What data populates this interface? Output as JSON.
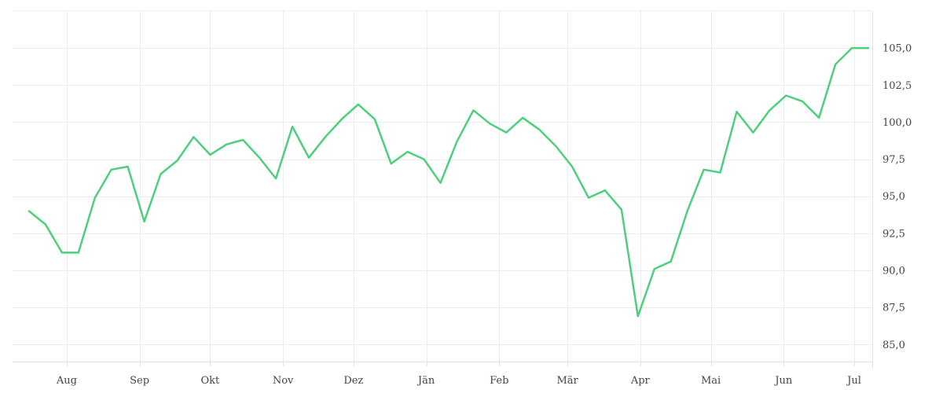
{
  "chart_data": {
    "type": "line",
    "title": "",
    "xlabel": "",
    "ylabel": "",
    "x_ticks": [
      "Aug",
      "Sep",
      "Okt",
      "Nov",
      "Dez",
      "Jän",
      "Feb",
      "Mär",
      "Apr",
      "Mai",
      "Jun",
      "Jul"
    ],
    "y_ticks": [
      "85,0",
      "87,5",
      "90,0",
      "92,5",
      "95,0",
      "97,5",
      "100,0",
      "102,5",
      "105,0"
    ],
    "y_tick_values": [
      85.0,
      87.5,
      90.0,
      92.5,
      95.0,
      97.5,
      100.0,
      102.5,
      105.0
    ],
    "ylim": [
      83.9,
      107.5
    ],
    "grid": true,
    "y_axis_side": "right",
    "series": [
      {
        "color": "#4cd07d",
        "points": [
          [
            "2023-07-16",
            94.0
          ],
          [
            "2023-07-23",
            93.1
          ],
          [
            "2023-07-30",
            91.2
          ],
          [
            "2023-08-06",
            91.2
          ],
          [
            "2023-08-13",
            94.9
          ],
          [
            "2023-08-20",
            96.8
          ],
          [
            "2023-08-27",
            97.0
          ],
          [
            "2023-09-03",
            93.3
          ],
          [
            "2023-09-10",
            96.5
          ],
          [
            "2023-09-17",
            97.4
          ],
          [
            "2023-09-24",
            99.0
          ],
          [
            "2023-10-01",
            97.8
          ],
          [
            "2023-10-08",
            98.5
          ],
          [
            "2023-10-15",
            98.8
          ],
          [
            "2023-10-22",
            97.6
          ],
          [
            "2023-10-29",
            96.2
          ],
          [
            "2023-11-05",
            99.7
          ],
          [
            "2023-11-12",
            97.6
          ],
          [
            "2023-11-19",
            99.0
          ],
          [
            "2023-11-26",
            100.2
          ],
          [
            "2023-12-03",
            101.2
          ],
          [
            "2023-12-10",
            100.2
          ],
          [
            "2023-12-17",
            97.2
          ],
          [
            "2023-12-24",
            98.0
          ],
          [
            "2023-12-31",
            97.5
          ],
          [
            "2024-01-07",
            95.9
          ],
          [
            "2024-01-14",
            98.7
          ],
          [
            "2024-01-21",
            100.8
          ],
          [
            "2024-01-28",
            99.9
          ],
          [
            "2024-02-04",
            99.3
          ],
          [
            "2024-02-11",
            100.3
          ],
          [
            "2024-02-18",
            99.5
          ],
          [
            "2024-02-25",
            98.4
          ],
          [
            "2024-03-03",
            97.0
          ],
          [
            "2024-03-10",
            94.9
          ],
          [
            "2024-03-17",
            95.4
          ],
          [
            "2024-03-24",
            94.1
          ],
          [
            "2024-03-31",
            86.9
          ],
          [
            "2024-04-07",
            90.1
          ],
          [
            "2024-04-14",
            90.6
          ],
          [
            "2024-04-21",
            94.0
          ],
          [
            "2024-04-28",
            96.8
          ],
          [
            "2024-05-05",
            96.6
          ],
          [
            "2024-05-12",
            100.7
          ],
          [
            "2024-05-19",
            99.3
          ],
          [
            "2024-05-26",
            100.8
          ],
          [
            "2024-06-02",
            101.8
          ],
          [
            "2024-06-09",
            101.4
          ],
          [
            "2024-06-16",
            100.3
          ],
          [
            "2024-06-23",
            103.9
          ],
          [
            "2024-06-30",
            105.0
          ],
          [
            "2024-07-07",
            105.0
          ]
        ]
      }
    ]
  }
}
